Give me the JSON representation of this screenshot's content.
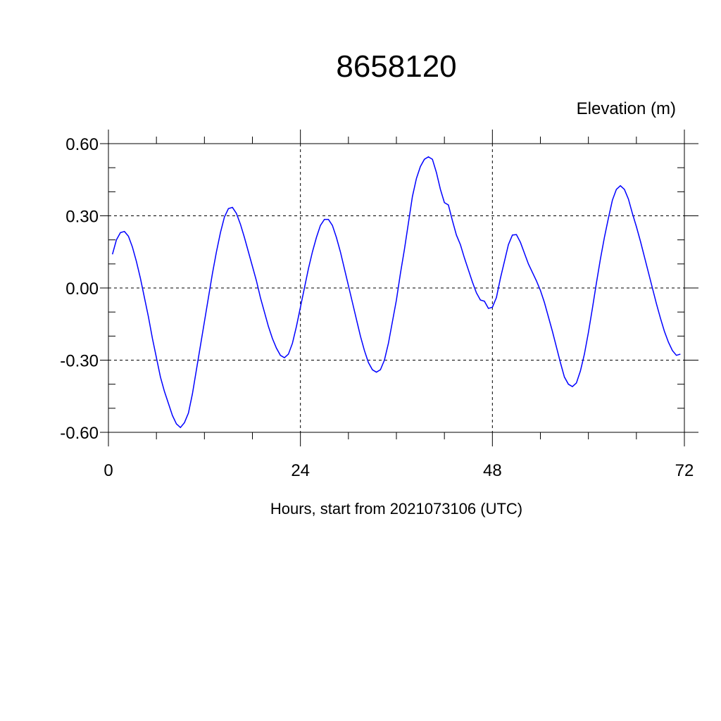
{
  "chart_data": {
    "type": "line",
    "title": "8658120",
    "ylabel": "Elevation (m)",
    "xlabel": "Hours, start from 2021073106 (UTC)",
    "xlim": [
      0,
      72
    ],
    "ylim": [
      -0.6,
      0.6
    ],
    "x_ticks": [
      0,
      24,
      48,
      72
    ],
    "x_tick_labels": [
      "0",
      "24",
      "48",
      "72"
    ],
    "y_ticks": [
      0.6,
      0.3,
      0.0,
      -0.3,
      -0.6
    ],
    "y_tick_labels": [
      "0.60",
      "0.30",
      "0.00",
      "-0.30",
      "-0.60"
    ],
    "grid": true,
    "line_color": "#0000ff",
    "series": [
      {
        "points": [
          [
            0.5,
            0.14
          ],
          [
            1.0,
            0.2
          ],
          [
            1.5,
            0.23
          ],
          [
            2.0,
            0.235
          ],
          [
            2.5,
            0.215
          ],
          [
            3.0,
            0.17
          ],
          [
            3.5,
            0.11
          ],
          [
            4.0,
            0.04
          ],
          [
            4.5,
            -0.04
          ],
          [
            5.0,
            -0.12
          ],
          [
            5.5,
            -0.21
          ],
          [
            6.0,
            -0.29
          ],
          [
            6.5,
            -0.37
          ],
          [
            7.0,
            -0.43
          ],
          [
            7.5,
            -0.48
          ],
          [
            8.0,
            -0.53
          ],
          [
            8.5,
            -0.565
          ],
          [
            9.0,
            -0.58
          ],
          [
            9.5,
            -0.56
          ],
          [
            10.0,
            -0.52
          ],
          [
            10.5,
            -0.44
          ],
          [
            11.0,
            -0.34
          ],
          [
            11.5,
            -0.24
          ],
          [
            12.0,
            -0.14
          ],
          [
            12.5,
            -0.04
          ],
          [
            13.0,
            0.06
          ],
          [
            13.5,
            0.15
          ],
          [
            14.0,
            0.23
          ],
          [
            14.5,
            0.295
          ],
          [
            15.0,
            0.33
          ],
          [
            15.5,
            0.335
          ],
          [
            16.0,
            0.31
          ],
          [
            16.5,
            0.265
          ],
          [
            17.0,
            0.21
          ],
          [
            17.5,
            0.15
          ],
          [
            18.0,
            0.09
          ],
          [
            18.5,
            0.03
          ],
          [
            19.0,
            -0.04
          ],
          [
            19.5,
            -0.1
          ],
          [
            20.0,
            -0.16
          ],
          [
            20.5,
            -0.21
          ],
          [
            21.0,
            -0.25
          ],
          [
            21.5,
            -0.28
          ],
          [
            22.0,
            -0.29
          ],
          [
            22.5,
            -0.275
          ],
          [
            23.0,
            -0.23
          ],
          [
            23.5,
            -0.16
          ],
          [
            24.0,
            -0.08
          ],
          [
            24.5,
            0.0
          ],
          [
            25.0,
            0.08
          ],
          [
            25.5,
            0.15
          ],
          [
            26.0,
            0.21
          ],
          [
            26.5,
            0.26
          ],
          [
            27.0,
            0.285
          ],
          [
            27.5,
            0.285
          ],
          [
            28.0,
            0.26
          ],
          [
            28.5,
            0.21
          ],
          [
            29.0,
            0.15
          ],
          [
            29.5,
            0.08
          ],
          [
            30.0,
            0.01
          ],
          [
            30.5,
            -0.06
          ],
          [
            31.0,
            -0.13
          ],
          [
            31.5,
            -0.2
          ],
          [
            32.0,
            -0.26
          ],
          [
            32.5,
            -0.31
          ],
          [
            33.0,
            -0.34
          ],
          [
            33.5,
            -0.35
          ],
          [
            34.0,
            -0.34
          ],
          [
            34.5,
            -0.3
          ],
          [
            35.0,
            -0.23
          ],
          [
            35.5,
            -0.14
          ],
          [
            36.0,
            -0.05
          ],
          [
            36.5,
            0.06
          ],
          [
            37.0,
            0.16
          ],
          [
            37.5,
            0.27
          ],
          [
            38.0,
            0.38
          ],
          [
            38.5,
            0.455
          ],
          [
            39.0,
            0.505
          ],
          [
            39.5,
            0.535
          ],
          [
            40.0,
            0.545
          ],
          [
            40.5,
            0.535
          ],
          [
            41.0,
            0.48
          ],
          [
            41.5,
            0.41
          ],
          [
            42.0,
            0.355
          ],
          [
            42.5,
            0.345
          ],
          [
            43.0,
            0.28
          ],
          [
            43.5,
            0.22
          ],
          [
            44.0,
            0.18
          ],
          [
            44.5,
            0.125
          ],
          [
            45.0,
            0.075
          ],
          [
            45.5,
            0.025
          ],
          [
            46.0,
            -0.02
          ],
          [
            46.5,
            -0.05
          ],
          [
            47.0,
            -0.055
          ],
          [
            47.5,
            -0.085
          ],
          [
            48.0,
            -0.08
          ],
          [
            48.5,
            -0.04
          ],
          [
            49.0,
            0.04
          ],
          [
            49.5,
            0.11
          ],
          [
            50.0,
            0.18
          ],
          [
            50.5,
            0.22
          ],
          [
            51.0,
            0.222
          ],
          [
            51.5,
            0.19
          ],
          [
            52.0,
            0.145
          ],
          [
            52.5,
            0.1
          ],
          [
            53.0,
            0.065
          ],
          [
            53.5,
            0.03
          ],
          [
            54.0,
            -0.01
          ],
          [
            54.5,
            -0.06
          ],
          [
            55.0,
            -0.12
          ],
          [
            55.5,
            -0.18
          ],
          [
            56.0,
            -0.245
          ],
          [
            56.5,
            -0.31
          ],
          [
            57.0,
            -0.37
          ],
          [
            57.5,
            -0.4
          ],
          [
            58.0,
            -0.41
          ],
          [
            58.5,
            -0.395
          ],
          [
            59.0,
            -0.345
          ],
          [
            59.5,
            -0.275
          ],
          [
            60.0,
            -0.185
          ],
          [
            60.5,
            -0.085
          ],
          [
            61.0,
            0.02
          ],
          [
            61.5,
            0.12
          ],
          [
            62.0,
            0.21
          ],
          [
            62.5,
            0.29
          ],
          [
            63.0,
            0.365
          ],
          [
            63.5,
            0.41
          ],
          [
            64.0,
            0.425
          ],
          [
            64.5,
            0.41
          ],
          [
            65.0,
            0.37
          ],
          [
            65.5,
            0.31
          ],
          [
            66.0,
            0.255
          ],
          [
            66.5,
            0.195
          ],
          [
            67.0,
            0.13
          ],
          [
            67.5,
            0.065
          ],
          [
            68.0,
            0.0
          ],
          [
            68.5,
            -0.065
          ],
          [
            69.0,
            -0.125
          ],
          [
            69.5,
            -0.18
          ],
          [
            70.0,
            -0.225
          ],
          [
            70.5,
            -0.26
          ],
          [
            71.0,
            -0.28
          ],
          [
            71.5,
            -0.275
          ]
        ]
      }
    ]
  }
}
